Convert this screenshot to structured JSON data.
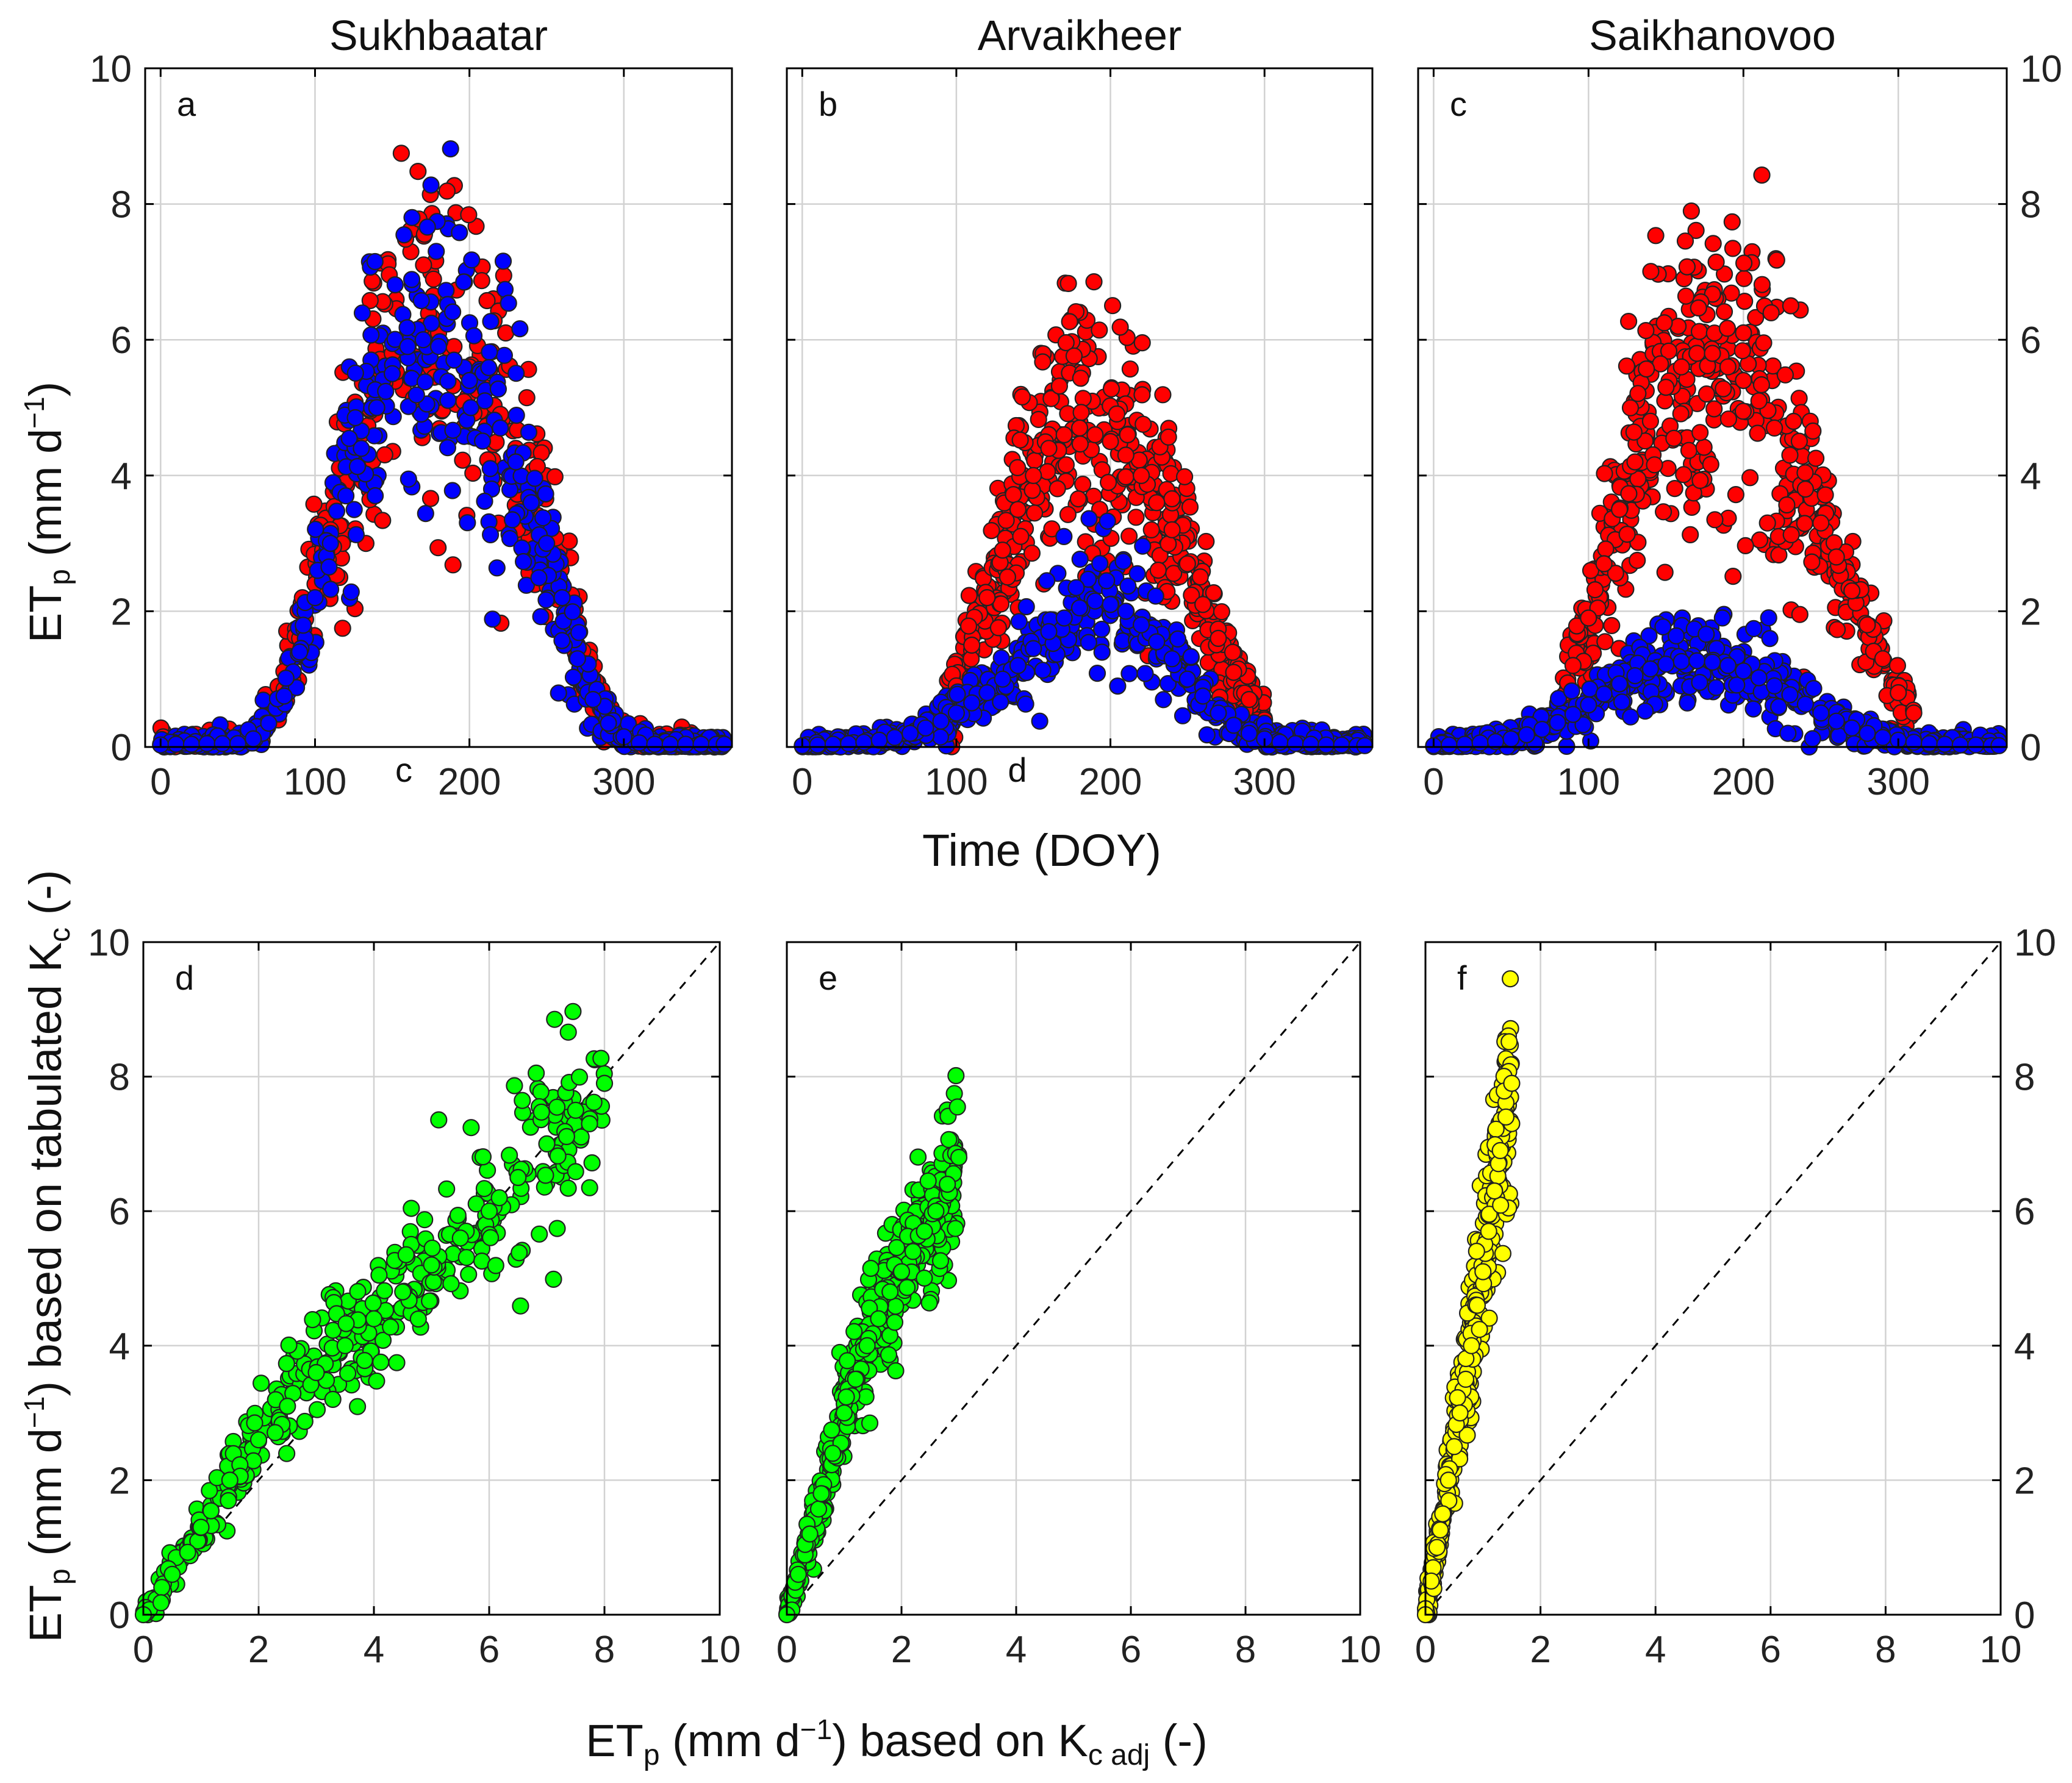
{
  "chart_data": [
    {
      "id": "a",
      "type": "scatter",
      "panel_letter": "a",
      "title": "Sukhbaatar",
      "xlabel": "",
      "ylabel": "ETp (mm d⁻¹)",
      "xlim": [
        -10,
        370
      ],
      "ylim": [
        0,
        10
      ],
      "xticks": [
        0,
        100,
        200,
        300
      ],
      "yticks": [
        0,
        2,
        4,
        6,
        8,
        10
      ],
      "grid": true,
      "series": [
        {
          "color": "#ff0000",
          "x": [
            0,
            10,
            20,
            30,
            40,
            50,
            60,
            70,
            80,
            90,
            100,
            110,
            120,
            130,
            140,
            150,
            160,
            170,
            180,
            190,
            200,
            210,
            220,
            230,
            240,
            250,
            260,
            270,
            280,
            290,
            300,
            310,
            320,
            330,
            340,
            350,
            360,
            365
          ],
          "y": [
            0.04,
            0.04,
            0.05,
            0.05,
            0.05,
            0.06,
            0.15,
            0.45,
            0.85,
            1.6,
            2.4,
            3.2,
            3.9,
            4.6,
            5.3,
            5.8,
            6.1,
            6.2,
            6.1,
            5.9,
            5.6,
            5.3,
            4.9,
            4.4,
            3.8,
            3.2,
            2.4,
            1.5,
            0.8,
            0.4,
            0.2,
            0.08,
            0.05,
            0.04,
            0.04,
            0.04,
            0.04,
            0.04
          ]
        },
        {
          "color": "#0000ff",
          "x": [
            0,
            10,
            20,
            30,
            40,
            50,
            60,
            70,
            80,
            90,
            100,
            110,
            120,
            130,
            140,
            150,
            160,
            170,
            180,
            190,
            200,
            210,
            220,
            230,
            240,
            250,
            260,
            270,
            280,
            290,
            300,
            310,
            320,
            330,
            340,
            350,
            360,
            365
          ],
          "y": [
            0.03,
            0.04,
            0.04,
            0.05,
            0.05,
            0.05,
            0.12,
            0.35,
            0.75,
            1.4,
            2.2,
            3.0,
            3.7,
            4.4,
            5.0,
            5.5,
            5.9,
            6.0,
            5.9,
            5.7,
            5.4,
            5.1,
            4.7,
            4.2,
            3.6,
            3.0,
            2.2,
            1.3,
            0.7,
            0.35,
            0.15,
            0.06,
            0.04,
            0.04,
            0.04,
            0.04,
            0.04,
            0.04
          ]
        }
      ]
    },
    {
      "id": "b",
      "type": "scatter",
      "panel_letter": "b",
      "title": "Arvaikheer",
      "xlabel": "Time (DOY)",
      "ylabel": "",
      "xlim": [
        -10,
        370
      ],
      "ylim": [
        0,
        10
      ],
      "xticks": [
        0,
        100,
        200,
        300
      ],
      "yticks": [
        0,
        2,
        4,
        6,
        8,
        10
      ],
      "grid": true,
      "series": [
        {
          "color": "#ff0000",
          "x": [
            90,
            100,
            110,
            120,
            130,
            140,
            150,
            160,
            170,
            180,
            190,
            200,
            210,
            220,
            230,
            240,
            250,
            260,
            270,
            280,
            290,
            300
          ],
          "y": [
            0.4,
            0.9,
            1.5,
            2.2,
            2.9,
            3.5,
            4.0,
            4.4,
            4.6,
            4.7,
            4.6,
            4.5,
            4.3,
            4.0,
            3.6,
            3.2,
            2.7,
            2.1,
            1.6,
            1.1,
            0.7,
            0.4
          ]
        },
        {
          "color": "#0000ff",
          "x": [
            0,
            10,
            20,
            30,
            40,
            50,
            60,
            70,
            80,
            90,
            100,
            110,
            120,
            130,
            140,
            150,
            160,
            170,
            180,
            190,
            200,
            210,
            220,
            230,
            240,
            250,
            260,
            270,
            280,
            290,
            300,
            310,
            320,
            330,
            340,
            350,
            360,
            365
          ],
          "y": [
            0.02,
            0.03,
            0.04,
            0.05,
            0.07,
            0.1,
            0.14,
            0.2,
            0.28,
            0.38,
            0.5,
            0.65,
            0.8,
            1.0,
            1.2,
            1.45,
            1.7,
            1.9,
            2.05,
            2.15,
            2.1,
            2.0,
            1.8,
            1.55,
            1.3,
            1.0,
            0.75,
            0.5,
            0.32,
            0.2,
            0.12,
            0.07,
            0.05,
            0.04,
            0.03,
            0.03,
            0.02,
            0.02
          ]
        }
      ]
    },
    {
      "id": "c",
      "type": "scatter",
      "panel_letter": "c",
      "title": "Saikhanovoo",
      "xlabel": "",
      "ylabel": "",
      "xlim": [
        -10,
        370
      ],
      "ylim": [
        0,
        10
      ],
      "xticks": [
        0,
        100,
        200,
        300
      ],
      "yticks": [
        0,
        2,
        4,
        6,
        8,
        10
      ],
      "grid": true,
      "series": [
        {
          "color": "#ff0000",
          "x": [
            80,
            90,
            100,
            110,
            120,
            130,
            140,
            150,
            160,
            170,
            180,
            190,
            200,
            210,
            220,
            230,
            240,
            250,
            260,
            270,
            280,
            290,
            300,
            310
          ],
          "y": [
            0.6,
            1.2,
            1.9,
            2.7,
            3.5,
            4.2,
            4.8,
            5.3,
            5.6,
            5.8,
            5.8,
            5.6,
            5.4,
            5.1,
            4.7,
            4.3,
            3.8,
            3.3,
            2.8,
            2.3,
            1.8,
            1.3,
            0.8,
            0.5
          ]
        },
        {
          "color": "#0000ff",
          "x": [
            0,
            10,
            20,
            30,
            40,
            50,
            60,
            70,
            80,
            90,
            100,
            110,
            120,
            130,
            140,
            150,
            160,
            170,
            180,
            190,
            200,
            210,
            220,
            230,
            240,
            250,
            260,
            270,
            280,
            290,
            300,
            310,
            320,
            330,
            340,
            350,
            360,
            365
          ],
          "y": [
            0.02,
            0.03,
            0.04,
            0.06,
            0.08,
            0.12,
            0.18,
            0.26,
            0.36,
            0.48,
            0.62,
            0.78,
            0.93,
            1.05,
            1.15,
            1.22,
            1.26,
            1.27,
            1.25,
            1.2,
            1.12,
            1.02,
            0.9,
            0.77,
            0.63,
            0.5,
            0.38,
            0.28,
            0.2,
            0.14,
            0.1,
            0.07,
            0.05,
            0.04,
            0.03,
            0.03,
            0.02,
            0.02
          ]
        }
      ]
    },
    {
      "id": "d",
      "type": "scatter",
      "panel_letter": "d",
      "title": "",
      "xlabel": "",
      "ylabel": "ETp (mm d⁻¹) based on tabulated Kc (-)",
      "xlim": [
        0,
        10
      ],
      "ylim": [
        0,
        10
      ],
      "xticks": [
        0,
        2,
        4,
        6,
        8,
        10
      ],
      "yticks": [
        0,
        2,
        4,
        6,
        8,
        10
      ],
      "grid": true,
      "one_to_one_line": true,
      "series": [
        {
          "color": "#00ff00",
          "x": [
            0.0,
            0.5,
            1.0,
            1.5,
            2.0,
            2.5,
            3.0,
            3.5,
            4.0,
            4.5,
            5.0,
            5.5,
            6.0,
            6.5,
            7.0,
            7.5,
            8.0
          ],
          "y": [
            0.0,
            0.6,
            1.3,
            2.0,
            2.6,
            3.1,
            3.6,
            4.0,
            4.4,
            4.8,
            5.2,
            5.6,
            6.0,
            6.5,
            7.0,
            7.5,
            7.9
          ]
        }
      ]
    },
    {
      "id": "e",
      "type": "scatter",
      "panel_letter": "e",
      "title": "",
      "xlabel": "ETp (mm d⁻¹) based on Kc adj (-)",
      "ylabel": "",
      "xlim": [
        0,
        10
      ],
      "ylim": [
        0,
        10
      ],
      "xticks": [
        0,
        2,
        4,
        6,
        8,
        10
      ],
      "yticks": [
        0,
        2,
        4,
        6,
        8,
        10
      ],
      "grid": true,
      "one_to_one_line": true,
      "series": [
        {
          "color": "#00ff00",
          "x": [
            0.0,
            0.2,
            0.4,
            0.6,
            0.8,
            1.0,
            1.2,
            1.4,
            1.6,
            1.8,
            2.0,
            2.2,
            2.4,
            2.6,
            2.8,
            3.0
          ],
          "y": [
            0.0,
            0.6,
            1.2,
            1.8,
            2.4,
            3.0,
            3.5,
            4.0,
            4.4,
            4.8,
            5.1,
            5.4,
            5.7,
            6.0,
            6.4,
            6.8
          ]
        }
      ]
    },
    {
      "id": "f",
      "type": "scatter",
      "panel_letter": "f",
      "title": "",
      "xlabel": "",
      "ylabel": "",
      "xlim": [
        0,
        10
      ],
      "ylim": [
        0,
        10
      ],
      "xticks": [
        0,
        2,
        4,
        6,
        8,
        10
      ],
      "yticks": [
        0,
        2,
        4,
        6,
        8,
        10
      ],
      "grid": true,
      "one_to_one_line": true,
      "series": [
        {
          "color": "#ffff00",
          "x": [
            0.0,
            0.1,
            0.2,
            0.3,
            0.4,
            0.5,
            0.6,
            0.7,
            0.8,
            0.9,
            1.0,
            1.1,
            1.2,
            1.3,
            1.4,
            1.5
          ],
          "y": [
            0.0,
            0.5,
            1.0,
            1.5,
            2.0,
            2.5,
            3.0,
            3.5,
            4.0,
            4.6,
            5.1,
            5.7,
            6.3,
            6.9,
            7.4,
            7.9
          ]
        }
      ]
    }
  ],
  "axis_labels": {
    "top_ylabel_main": "ET",
    "top_ylabel_sub": "p",
    "top_ylabel_rest": " (mm d",
    "top_ylabel_sup": "−1",
    "top_ylabel_end": ")",
    "top_xlabel": "Time (DOY)",
    "bottom_ylabel_main": "ET",
    "bottom_ylabel_sub": "p",
    "bottom_ylabel_rest": " (mm d",
    "bottom_ylabel_sup": "−1",
    "bottom_ylabel_mid": ") based on tabulated K",
    "bottom_ylabel_sub2": "c",
    "bottom_ylabel_end": " (-)",
    "bottom_xlabel_main": "ET",
    "bottom_xlabel_sub": "p",
    "bottom_xlabel_rest": " (mm d",
    "bottom_xlabel_sup": "−1",
    "bottom_xlabel_mid": ") based on K",
    "bottom_xlabel_sub2": "c adj",
    "bottom_xlabel_end": " (-)"
  },
  "stray_letters": {
    "left": "c",
    "middle": "d"
  }
}
